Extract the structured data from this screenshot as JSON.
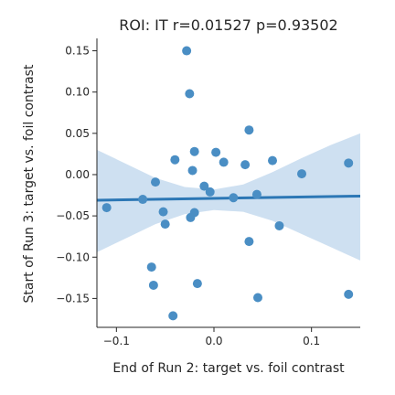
{
  "chart_data": {
    "type": "scatter",
    "title": "ROI: IT  r=0.01527  p=0.93502",
    "xlabel": "End of Run 2: target vs. foil contrast",
    "ylabel": "Start of Run 3: target vs. foil contrast",
    "xlim": [
      -0.12,
      0.15
    ],
    "ylim": [
      -0.185,
      0.165
    ],
    "x_ticks": [
      -0.1,
      0.0,
      0.1
    ],
    "x_tick_labels": [
      "−0.1",
      "0.0",
      "0.1"
    ],
    "y_ticks": [
      0.15,
      0.1,
      0.05,
      0.0,
      -0.05,
      -0.1,
      -0.15
    ],
    "y_tick_labels": [
      "0.15",
      "0.10",
      "0.05",
      "0.00",
      "−0.05",
      "−0.10",
      "−0.15"
    ],
    "grid": false,
    "colors": {
      "points": "#4a8ec4",
      "line": "#2c77b5",
      "band": "#c5dbee"
    },
    "points": [
      {
        "x": -0.028,
        "y": 0.15
      },
      {
        "x": -0.025,
        "y": 0.098
      },
      {
        "x": 0.036,
        "y": 0.054
      },
      {
        "x": -0.02,
        "y": 0.028
      },
      {
        "x": 0.002,
        "y": 0.027
      },
      {
        "x": -0.04,
        "y": 0.018
      },
      {
        "x": 0.01,
        "y": 0.015
      },
      {
        "x": 0.06,
        "y": 0.017
      },
      {
        "x": 0.032,
        "y": 0.012
      },
      {
        "x": 0.138,
        "y": 0.014
      },
      {
        "x": -0.022,
        "y": 0.005
      },
      {
        "x": 0.09,
        "y": 0.001
      },
      {
        "x": -0.06,
        "y": -0.009
      },
      {
        "x": -0.01,
        "y": -0.014
      },
      {
        "x": -0.004,
        "y": -0.021
      },
      {
        "x": 0.044,
        "y": -0.024
      },
      {
        "x": 0.02,
        "y": -0.028
      },
      {
        "x": -0.073,
        "y": -0.03
      },
      {
        "x": -0.11,
        "y": -0.04
      },
      {
        "x": -0.052,
        "y": -0.045
      },
      {
        "x": -0.02,
        "y": -0.046
      },
      {
        "x": -0.024,
        "y": -0.052
      },
      {
        "x": -0.05,
        "y": -0.06
      },
      {
        "x": 0.067,
        "y": -0.062
      },
      {
        "x": 0.036,
        "y": -0.081
      },
      {
        "x": -0.064,
        "y": -0.112
      },
      {
        "x": -0.062,
        "y": -0.134
      },
      {
        "x": -0.017,
        "y": -0.132
      },
      {
        "x": 0.138,
        "y": -0.145
      },
      {
        "x": 0.045,
        "y": -0.149
      },
      {
        "x": -0.042,
        "y": -0.171
      }
    ],
    "regression": {
      "x": [
        -0.12,
        0.15
      ],
      "y": [
        -0.031,
        -0.026
      ]
    },
    "confidence_band": {
      "x": [
        -0.12,
        -0.09,
        -0.06,
        -0.03,
        0.0,
        0.03,
        0.06,
        0.09,
        0.12,
        0.15
      ],
      "upper": [
        0.03,
        0.013,
        -0.004,
        -0.015,
        -0.018,
        -0.012,
        0.003,
        0.02,
        0.036,
        0.05
      ],
      "lower": [
        -0.094,
        -0.077,
        -0.06,
        -0.048,
        -0.043,
        -0.045,
        -0.056,
        -0.072,
        -0.088,
        -0.104
      ]
    }
  }
}
